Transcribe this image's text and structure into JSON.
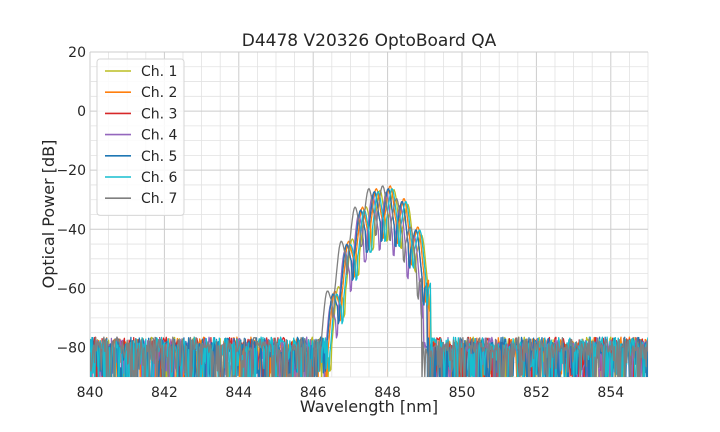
{
  "chart_data": {
    "type": "line",
    "title": "D4478 V20326 OptoBoard QA",
    "xlabel": "Wavelength [nm]",
    "ylabel": "Optical Power [dB]",
    "xlim": [
      840,
      855
    ],
    "ylim": [
      -90,
      20
    ],
    "x_ticks": [
      "840",
      "842",
      "844",
      "846",
      "848",
      "850",
      "852",
      "854"
    ],
    "y_ticks": [
      "20",
      "0",
      "−20",
      "−40",
      "−60",
      "−80"
    ],
    "grid": true,
    "legend_position": "top-left",
    "noise_floor_db": -80,
    "x_resolution_nm": 0.025,
    "series": [
      {
        "name": "Ch. 1",
        "color": "#bcbd22",
        "envelope_peak_nm": 848.0,
        "envelope_halfwidth_nm": 1.6,
        "envelope_peak_db": -26,
        "fringe_period_nm": 0.38,
        "fringe_phase_nm": 848.55,
        "fringe_depth_db": 12
      },
      {
        "name": "Ch. 2",
        "color": "#ff7f0e",
        "envelope_peak_nm": 847.95,
        "envelope_halfwidth_nm": 1.6,
        "envelope_peak_db": -25,
        "fringe_period_nm": 0.38,
        "fringe_phase_nm": 848.45,
        "fringe_depth_db": 12
      },
      {
        "name": "Ch. 3",
        "color": "#d62728",
        "envelope_peak_nm": 847.9,
        "envelope_halfwidth_nm": 1.6,
        "envelope_peak_db": -26,
        "fringe_period_nm": 0.38,
        "fringe_phase_nm": 848.4,
        "fringe_depth_db": 12
      },
      {
        "name": "Ch. 4",
        "color": "#9467bd",
        "envelope_peak_nm": 847.85,
        "envelope_halfwidth_nm": 1.55,
        "envelope_peak_db": -27,
        "fringe_period_nm": 0.38,
        "fringe_phase_nm": 848.35,
        "fringe_depth_db": 14
      },
      {
        "name": "Ch. 5",
        "color": "#1f77b4",
        "envelope_peak_nm": 847.9,
        "envelope_halfwidth_nm": 1.6,
        "envelope_peak_db": -26,
        "fringe_period_nm": 0.38,
        "fringe_phase_nm": 848.4,
        "fringe_depth_db": 12
      },
      {
        "name": "Ch. 6",
        "color": "#17becf",
        "envelope_peak_nm": 848.0,
        "envelope_halfwidth_nm": 1.6,
        "envelope_peak_db": -26,
        "fringe_period_nm": 0.38,
        "fringe_phase_nm": 848.5,
        "fringe_depth_db": 12
      },
      {
        "name": "Ch. 7",
        "color": "#7f7f7f",
        "envelope_peak_nm": 847.75,
        "envelope_halfwidth_nm": 1.6,
        "envelope_peak_db": -25,
        "fringe_period_nm": 0.38,
        "fringe_phase_nm": 848.25,
        "fringe_depth_db": 11
      }
    ]
  }
}
